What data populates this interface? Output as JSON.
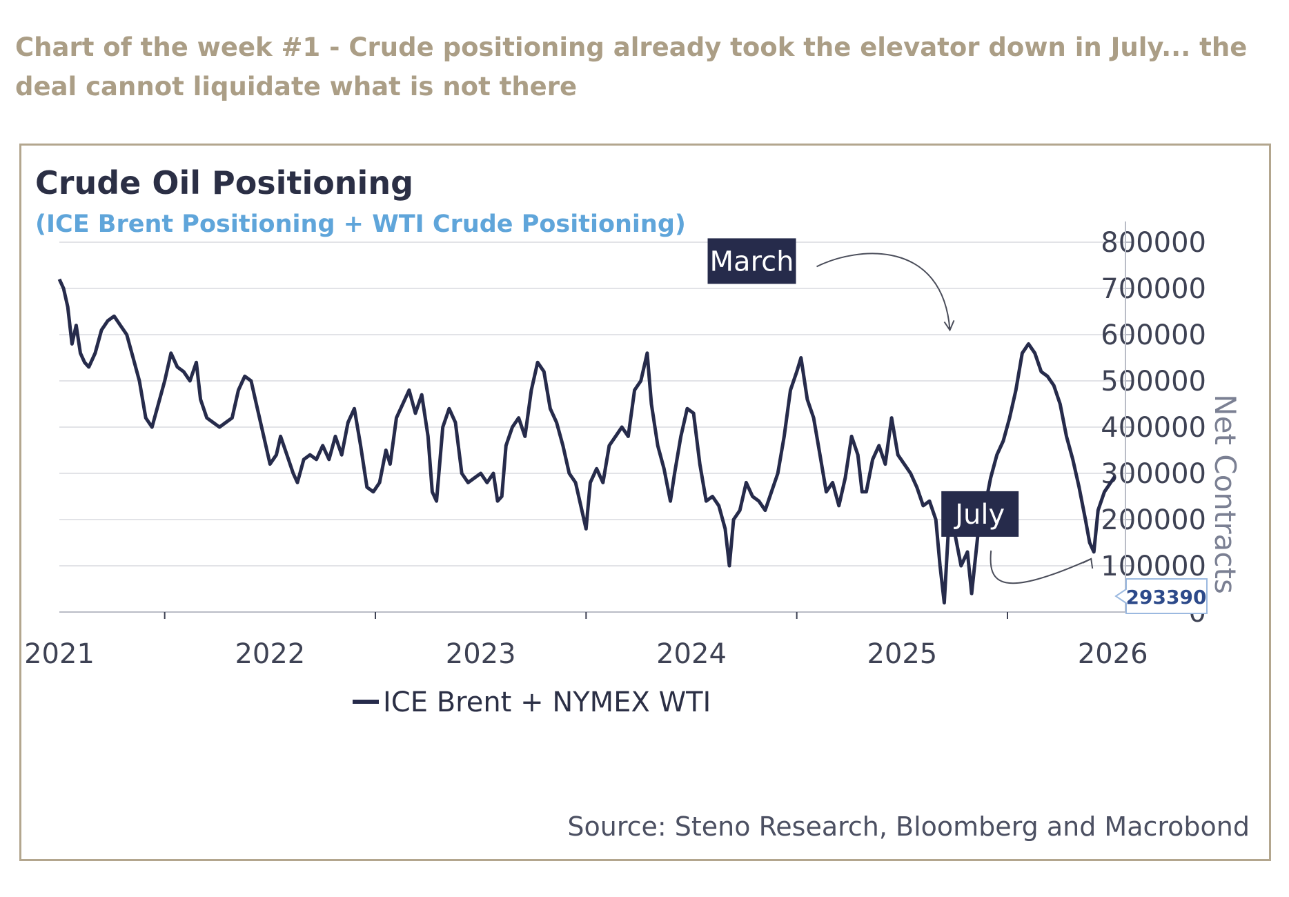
{
  "headline": "Chart of the week #1 - Crude positioning already took the elevator down in July... the deal cannot liquidate what is not there",
  "chart_data": {
    "type": "line",
    "title": "Crude Oil Positioning",
    "subtitle": "(ICE Brent Positioning + WTI Crude Positioning)",
    "ylabel": "Net Contracts",
    "source": "Source: Steno Research, Bloomberg and Macrobond",
    "legend": "top-left",
    "grid": true,
    "xlim": [
      2021.0,
      2026.06
    ],
    "ylim": [
      0,
      800000
    ],
    "x_ticks": [
      "2021",
      "2022",
      "2023",
      "2024",
      "2025",
      "2026"
    ],
    "y_ticks": [
      "0",
      "100000",
      "200000",
      "300000",
      "400000",
      "500000",
      "600000",
      "700000",
      "800000"
    ],
    "last_value_label": "293390",
    "annotations": [
      {
        "text": "March",
        "x": 2025.22,
        "y": 580000
      },
      {
        "text": "July",
        "x": 2025.91,
        "y": 130000
      }
    ],
    "colors": {
      "line": "#262b4b",
      "grid": "#e2e3e7",
      "subtitle": "#5fa5da",
      "headline": "#ab9e86",
      "frame": "#b3a68e",
      "annotation_box": "#262b4b",
      "callout_border": "#9bb9e0"
    },
    "series": [
      {
        "name": "ICE Brent + NYMEX WTI",
        "points": [
          [
            2021.0,
            720000
          ],
          [
            2021.02,
            700000
          ],
          [
            2021.04,
            660000
          ],
          [
            2021.06,
            580000
          ],
          [
            2021.08,
            620000
          ],
          [
            2021.1,
            560000
          ],
          [
            2021.12,
            540000
          ],
          [
            2021.14,
            530000
          ],
          [
            2021.17,
            560000
          ],
          [
            2021.2,
            610000
          ],
          [
            2021.23,
            630000
          ],
          [
            2021.26,
            640000
          ],
          [
            2021.29,
            620000
          ],
          [
            2021.32,
            600000
          ],
          [
            2021.35,
            550000
          ],
          [
            2021.38,
            500000
          ],
          [
            2021.41,
            420000
          ],
          [
            2021.44,
            400000
          ],
          [
            2021.47,
            450000
          ],
          [
            2021.5,
            500000
          ],
          [
            2021.53,
            560000
          ],
          [
            2021.56,
            530000
          ],
          [
            2021.59,
            520000
          ],
          [
            2021.62,
            500000
          ],
          [
            2021.65,
            540000
          ],
          [
            2021.67,
            460000
          ],
          [
            2021.7,
            420000
          ],
          [
            2021.73,
            410000
          ],
          [
            2021.76,
            400000
          ],
          [
            2021.79,
            410000
          ],
          [
            2021.82,
            420000
          ],
          [
            2021.85,
            480000
          ],
          [
            2021.88,
            510000
          ],
          [
            2021.91,
            500000
          ],
          [
            2021.94,
            440000
          ],
          [
            2021.97,
            380000
          ],
          [
            2022.0,
            320000
          ],
          [
            2022.03,
            340000
          ],
          [
            2022.05,
            380000
          ],
          [
            2022.08,
            340000
          ],
          [
            2022.11,
            300000
          ],
          [
            2022.13,
            280000
          ],
          [
            2022.16,
            330000
          ],
          [
            2022.19,
            340000
          ],
          [
            2022.22,
            330000
          ],
          [
            2022.25,
            360000
          ],
          [
            2022.28,
            330000
          ],
          [
            2022.31,
            380000
          ],
          [
            2022.34,
            340000
          ],
          [
            2022.37,
            410000
          ],
          [
            2022.4,
            440000
          ],
          [
            2022.43,
            360000
          ],
          [
            2022.46,
            270000
          ],
          [
            2022.49,
            260000
          ],
          [
            2022.52,
            280000
          ],
          [
            2022.55,
            350000
          ],
          [
            2022.57,
            320000
          ],
          [
            2022.6,
            420000
          ],
          [
            2022.63,
            450000
          ],
          [
            2022.66,
            480000
          ],
          [
            2022.69,
            430000
          ],
          [
            2022.72,
            470000
          ],
          [
            2022.75,
            380000
          ],
          [
            2022.77,
            260000
          ],
          [
            2022.79,
            240000
          ],
          [
            2022.82,
            400000
          ],
          [
            2022.85,
            440000
          ],
          [
            2022.88,
            410000
          ],
          [
            2022.91,
            300000
          ],
          [
            2022.94,
            280000
          ],
          [
            2022.97,
            290000
          ],
          [
            2023.0,
            300000
          ],
          [
            2023.03,
            280000
          ],
          [
            2023.06,
            300000
          ],
          [
            2023.08,
            240000
          ],
          [
            2023.1,
            250000
          ],
          [
            2023.12,
            360000
          ],
          [
            2023.15,
            400000
          ],
          [
            2023.18,
            420000
          ],
          [
            2023.21,
            380000
          ],
          [
            2023.24,
            480000
          ],
          [
            2023.27,
            540000
          ],
          [
            2023.3,
            520000
          ],
          [
            2023.33,
            440000
          ],
          [
            2023.36,
            410000
          ],
          [
            2023.39,
            360000
          ],
          [
            2023.42,
            300000
          ],
          [
            2023.45,
            280000
          ],
          [
            2023.48,
            220000
          ],
          [
            2023.5,
            180000
          ],
          [
            2023.52,
            280000
          ],
          [
            2023.55,
            310000
          ],
          [
            2023.58,
            280000
          ],
          [
            2023.61,
            360000
          ],
          [
            2023.64,
            380000
          ],
          [
            2023.67,
            400000
          ],
          [
            2023.7,
            380000
          ],
          [
            2023.73,
            480000
          ],
          [
            2023.76,
            500000
          ],
          [
            2023.79,
            560000
          ],
          [
            2023.81,
            450000
          ],
          [
            2023.84,
            360000
          ],
          [
            2023.87,
            310000
          ],
          [
            2023.9,
            240000
          ],
          [
            2023.92,
            300000
          ],
          [
            2023.95,
            380000
          ],
          [
            2023.98,
            440000
          ],
          [
            2024.01,
            430000
          ],
          [
            2024.04,
            320000
          ],
          [
            2024.07,
            240000
          ],
          [
            2024.1,
            250000
          ],
          [
            2024.13,
            230000
          ],
          [
            2024.16,
            180000
          ],
          [
            2024.18,
            100000
          ],
          [
            2024.2,
            200000
          ],
          [
            2024.23,
            220000
          ],
          [
            2024.26,
            280000
          ],
          [
            2024.29,
            250000
          ],
          [
            2024.32,
            240000
          ],
          [
            2024.35,
            220000
          ],
          [
            2024.38,
            260000
          ],
          [
            2024.41,
            300000
          ],
          [
            2024.44,
            380000
          ],
          [
            2024.47,
            480000
          ],
          [
            2024.5,
            520000
          ],
          [
            2024.52,
            550000
          ],
          [
            2024.55,
            460000
          ],
          [
            2024.58,
            420000
          ],
          [
            2024.61,
            340000
          ],
          [
            2024.64,
            260000
          ],
          [
            2024.67,
            280000
          ],
          [
            2024.7,
            230000
          ],
          [
            2024.73,
            290000
          ],
          [
            2024.76,
            380000
          ],
          [
            2024.79,
            340000
          ],
          [
            2024.81,
            260000
          ],
          [
            2024.83,
            260000
          ],
          [
            2024.86,
            330000
          ],
          [
            2024.89,
            360000
          ],
          [
            2024.92,
            320000
          ],
          [
            2024.95,
            420000
          ],
          [
            2024.98,
            340000
          ],
          [
            2025.01,
            320000
          ],
          [
            2025.04,
            300000
          ],
          [
            2025.07,
            270000
          ],
          [
            2025.1,
            230000
          ],
          [
            2025.13,
            240000
          ],
          [
            2025.16,
            200000
          ],
          [
            2025.18,
            100000
          ],
          [
            2025.2,
            20000
          ],
          [
            2025.22,
            180000
          ],
          [
            2025.25,
            170000
          ],
          [
            2025.28,
            100000
          ],
          [
            2025.31,
            130000
          ],
          [
            2025.33,
            40000
          ],
          [
            2025.36,
            170000
          ],
          [
            2025.39,
            220000
          ],
          [
            2025.42,
            290000
          ],
          [
            2025.45,
            340000
          ],
          [
            2025.48,
            370000
          ],
          [
            2025.51,
            420000
          ],
          [
            2025.54,
            480000
          ],
          [
            2025.57,
            560000
          ],
          [
            2025.6,
            580000
          ],
          [
            2025.63,
            560000
          ],
          [
            2025.66,
            520000
          ],
          [
            2025.69,
            510000
          ],
          [
            2025.72,
            490000
          ],
          [
            2025.75,
            450000
          ],
          [
            2025.78,
            380000
          ],
          [
            2025.81,
            330000
          ],
          [
            2025.84,
            270000
          ],
          [
            2025.87,
            200000
          ],
          [
            2025.89,
            150000
          ],
          [
            2025.91,
            130000
          ],
          [
            2025.93,
            220000
          ],
          [
            2025.96,
            260000
          ],
          [
            2025.99,
            280000
          ],
          [
            2026.01,
            293390
          ]
        ]
      }
    ]
  }
}
